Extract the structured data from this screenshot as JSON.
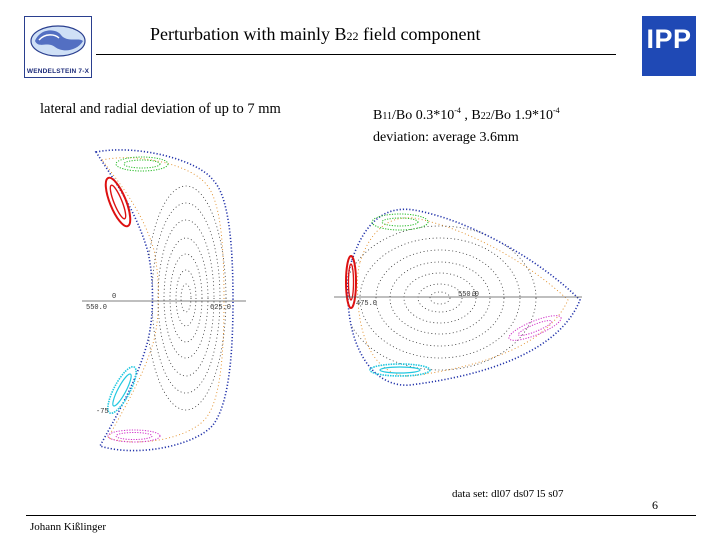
{
  "header": {
    "title_before": "Perturbation with mainly B",
    "title_sub": "22",
    "title_after": "  field component",
    "logo_left_text": "WENDELSTEIN 7-X",
    "logo_right_text": "IPP"
  },
  "left_panel": {
    "caption": "lateral and radial deviation of up to 7 mm",
    "tick_labels": {
      "zero": "0",
      "r_min": "550.0",
      "r_max": "625.0",
      "z_min": "-75"
    }
  },
  "right_panel": {
    "b11_label": "B",
    "b11_sub": "11",
    "b11_value": "/Bo 0.3*10",
    "b11_exp": "-4",
    "separator": " , ",
    "b22_label": "B",
    "b22_sub": "22",
    "b22_value": "/Bo 1.9*10",
    "b22_exp": "-4",
    "deviation": "deviation:   average  3.6mm",
    "tick_labels": {
      "r_min": "475.0",
      "r_mid": "550.0",
      "zero": "0"
    }
  },
  "footer": {
    "dataset": "data set: dl07 ds07 l5 s07",
    "page_number": "6",
    "author": "Johann Kißlinger"
  },
  "colors": {
    "island_green": "#22bb22",
    "island_red": "#dd1111",
    "island_cyan": "#22c8e0",
    "island_magenta": "#d030c8",
    "edge_blue": "#2233aa",
    "orange": "#e08a20",
    "logo_blue": "#1f49b5"
  }
}
